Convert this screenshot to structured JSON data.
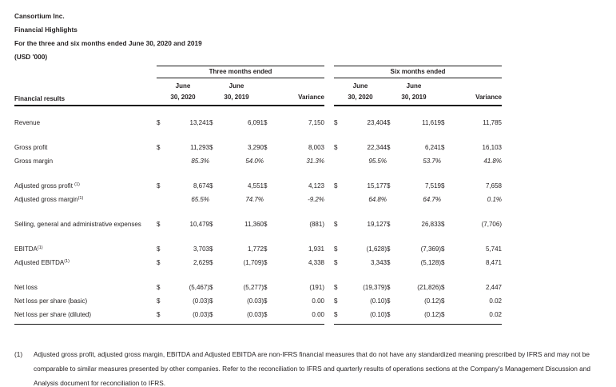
{
  "header": {
    "company": "Cansortium Inc.",
    "title": "Financial Highlights",
    "period": "For the three and six months ended June 30, 2020 and 2019",
    "units": "(USD '000)"
  },
  "table": {
    "row_header": "Financial results",
    "currency": "$",
    "groups": [
      {
        "label": "Three months ended"
      },
      {
        "label": "Six months ended"
      }
    ],
    "column_headers": [
      {
        "line1": "June",
        "line2": "30, 2020"
      },
      {
        "line1": "June",
        "line2": "30, 2019"
      },
      {
        "line1": "",
        "line2": "Variance"
      }
    ],
    "sections": [
      {
        "rows": [
          {
            "label": "Revenue",
            "sup": "",
            "type": "money",
            "three": [
              "13,241",
              "6,091",
              "7,150"
            ],
            "six": [
              "23,404",
              "11,619",
              "11,785"
            ]
          }
        ]
      },
      {
        "rows": [
          {
            "label": "Gross profit",
            "sup": "",
            "type": "money",
            "three": [
              "11,293",
              "3,290",
              "8,003"
            ],
            "six": [
              "22,344",
              "6,241",
              "16,103"
            ]
          },
          {
            "label": "Gross margin",
            "sup": "",
            "type": "percent",
            "three": [
              "85.3%",
              "54.0%",
              "31.3%"
            ],
            "six": [
              "95.5%",
              "53.7%",
              "41.8%"
            ]
          }
        ]
      },
      {
        "rows": [
          {
            "label": "Adjusted gross profit ",
            "sup": "(1)",
            "type": "money",
            "three": [
              "8,674",
              "4,551",
              "4,123"
            ],
            "six": [
              "15,177",
              "7,519",
              "7,658"
            ]
          },
          {
            "label": "Adjusted gross margin",
            "sup": "(1)",
            "type": "percent",
            "three": [
              "65.5%",
              "74.7%",
              "-9.2%"
            ],
            "six": [
              "64.8%",
              "64.7%",
              "0.1%"
            ]
          }
        ]
      },
      {
        "rows": [
          {
            "label": "Selling, general and administrative expenses",
            "sup": "",
            "type": "money",
            "three": [
              "10,479",
              "11,360",
              "(881)"
            ],
            "six": [
              "19,127",
              "26,833",
              "(7,706)"
            ]
          }
        ]
      },
      {
        "rows": [
          {
            "label": "EBITDA",
            "sup": "(1)",
            "type": "money",
            "three": [
              "3,703",
              "1,772",
              "1,931"
            ],
            "six": [
              "(1,628)",
              "(7,369)",
              "5,741"
            ]
          },
          {
            "label": "Adjusted EBITDA",
            "sup": "(1)",
            "type": "money",
            "three": [
              "2,629",
              "(1,709)",
              "4,338"
            ],
            "six": [
              "3,343",
              "(5,128)",
              "8,471"
            ]
          }
        ]
      },
      {
        "rows": [
          {
            "label": "Net loss",
            "sup": "",
            "type": "money",
            "three": [
              "(5,467)",
              "(5,277)",
              "(191)"
            ],
            "six": [
              "(19,379)",
              "(21,826)",
              "2,447"
            ]
          },
          {
            "label": "Net loss per share (basic)",
            "sup": "",
            "type": "money",
            "three": [
              "(0.03)",
              "(0.03)",
              "0.00"
            ],
            "six": [
              "(0.10)",
              "(0.12)",
              "0.02"
            ]
          },
          {
            "label": "Net loss per share (diluted)",
            "sup": "",
            "type": "money",
            "three": [
              "(0.03)",
              "(0.03)",
              "0.00"
            ],
            "six": [
              "(0.10)",
              "(0.12)",
              "0.02"
            ]
          }
        ]
      }
    ]
  },
  "footnote": {
    "marker": "(1)",
    "text": "Adjusted gross profit, adjusted gross margin, EBITDA and Adjusted EBITDA are non-IFRS financial measures that do not have any standardized meaning prescribed by IFRS and may not be comparable to similar measures presented by other companies. Refer to the reconciliation to IFRS and quarterly results of operations sections at the Company's Management Discussion and Analysis document for reconciliation to IFRS."
  }
}
